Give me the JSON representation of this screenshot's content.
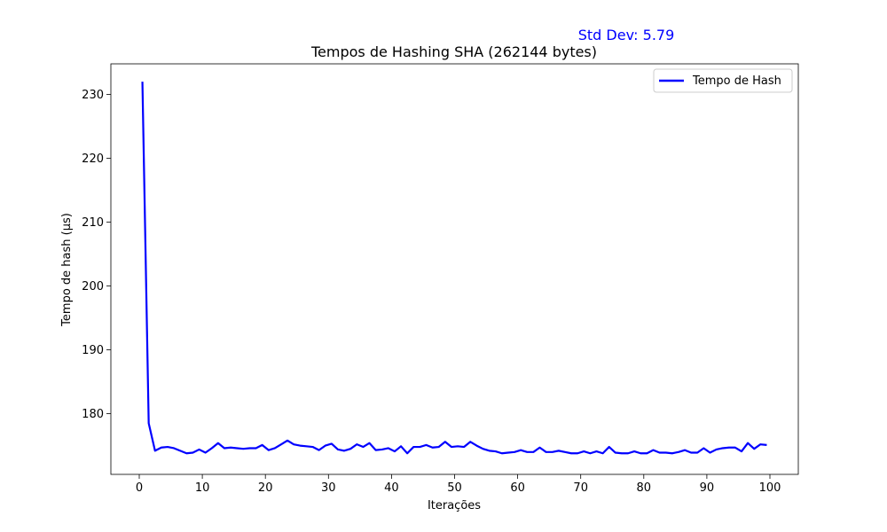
{
  "chart_data": {
    "type": "line",
    "title": "Tempos de Hashing SHA (262144 bytes)",
    "xlabel": "Iterações",
    "ylabel": "Tempo de hash (µs)",
    "xlim": [
      -4.5,
      104.5
    ],
    "ylim": [
      170.5,
      234.8
    ],
    "xticks": [
      0,
      10,
      20,
      30,
      40,
      50,
      60,
      70,
      80,
      90,
      100
    ],
    "yticks": [
      180,
      190,
      200,
      210,
      220,
      230
    ],
    "legend_position": "top-right",
    "grid": false,
    "annotation": {
      "text": "Std Dev: 5.79",
      "color": "#0000ff"
    },
    "series": [
      {
        "name": "Tempo de Hash",
        "color": "#0000ff",
        "x": [
          0.5,
          1.5,
          2.5,
          3.5,
          4.5,
          5.5,
          6.5,
          7.5,
          8.5,
          9.5,
          10.5,
          11.5,
          12.5,
          13.5,
          14.5,
          15.5,
          16.5,
          17.5,
          18.5,
          19.5,
          20.5,
          21.5,
          22.5,
          23.5,
          24.5,
          25.5,
          26.5,
          27.5,
          28.5,
          29.5,
          30.5,
          31.5,
          32.5,
          33.5,
          34.5,
          35.5,
          36.5,
          37.5,
          38.5,
          39.5,
          40.5,
          41.5,
          42.5,
          43.5,
          44.5,
          45.5,
          46.5,
          47.5,
          48.5,
          49.5,
          50.5,
          51.5,
          52.5,
          53.5,
          54.5,
          55.5,
          56.5,
          57.5,
          58.5,
          59.5,
          60.5,
          61.5,
          62.5,
          63.5,
          64.5,
          65.5,
          66.5,
          67.5,
          68.5,
          69.5,
          70.5,
          71.5,
          72.5,
          73.5,
          74.5,
          75.5,
          76.5,
          77.5,
          78.5,
          79.5,
          80.5,
          81.5,
          82.5,
          83.5,
          84.5,
          85.5,
          86.5,
          87.5,
          88.5,
          89.5,
          90.5,
          91.5,
          92.5,
          93.5,
          94.5,
          95.5,
          96.5,
          97.5,
          98.5,
          99.5
        ],
        "values": [
          232.0,
          178.5,
          174.2,
          174.7,
          174.8,
          174.6,
          174.2,
          173.8,
          173.9,
          174.4,
          173.9,
          174.6,
          175.4,
          174.6,
          174.7,
          174.6,
          174.5,
          174.6,
          174.6,
          175.1,
          174.3,
          174.6,
          175.2,
          175.8,
          175.2,
          175.0,
          174.9,
          174.8,
          174.3,
          175.0,
          175.3,
          174.4,
          174.2,
          174.5,
          175.2,
          174.8,
          175.4,
          174.3,
          174.4,
          174.6,
          174.1,
          174.9,
          173.8,
          174.8,
          174.8,
          175.1,
          174.7,
          174.8,
          175.6,
          174.8,
          174.9,
          174.8,
          175.6,
          175.0,
          174.5,
          174.2,
          174.1,
          173.8,
          173.9,
          174.0,
          174.3,
          174.0,
          174.0,
          174.7,
          174.0,
          174.0,
          174.2,
          174.0,
          173.8,
          173.8,
          174.1,
          173.8,
          174.1,
          173.8,
          174.8,
          173.9,
          173.8,
          173.8,
          174.1,
          173.8,
          173.8,
          174.3,
          173.9,
          173.9,
          173.8,
          174.0,
          174.3,
          173.9,
          173.9,
          174.6,
          173.9,
          174.4,
          174.6,
          174.7,
          174.7,
          174.1,
          175.4,
          174.5,
          175.2,
          175.1
        ]
      }
    ]
  }
}
